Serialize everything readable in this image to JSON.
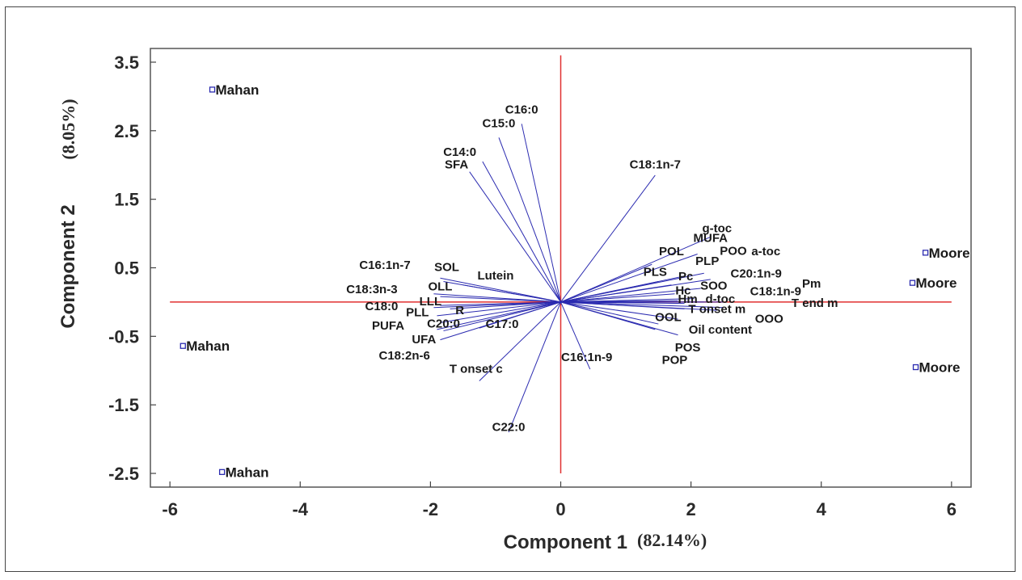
{
  "chart_data": {
    "type": "scatter",
    "subtype": "biplot",
    "title": "",
    "xlabel": "Component 1",
    "xlabel_pct": "(82.14%)",
    "ylabel": "Component 2",
    "ylabel_pct": "(8.05%)",
    "xlim": [
      -6.3,
      6.3
    ],
    "ylim": [
      -2.7,
      3.7
    ],
    "xticks": [
      -6,
      -4,
      -2,
      0,
      2,
      4,
      6
    ],
    "yticks": [
      3.5,
      2.5,
      1.5,
      0.5,
      -0.5,
      -1.5,
      -2.5
    ],
    "colors": {
      "vectors": "#2b2bb0",
      "reference_lines": "#e03030",
      "points": "#2b2bb0",
      "text": "#1a1a1a"
    },
    "points": [
      {
        "label": "Mahan",
        "x": -5.35,
        "y": 3.1
      },
      {
        "label": "Mahan",
        "x": -5.8,
        "y": -0.64
      },
      {
        "label": "Mahan",
        "x": -5.2,
        "y": -2.48
      },
      {
        "label": "Moore",
        "x": 5.6,
        "y": 0.72
      },
      {
        "label": "Moore",
        "x": 5.4,
        "y": 0.28
      },
      {
        "label": "Moore",
        "x": 5.45,
        "y": -0.95
      }
    ],
    "vectors": [
      {
        "label": "C16:0",
        "x": -0.6,
        "y": 2.6
      },
      {
        "label": "C15:0",
        "x": -0.95,
        "y": 2.4
      },
      {
        "label": "C14:0",
        "x": -1.2,
        "y": 2.05
      },
      {
        "label": "SFA",
        "x": -1.4,
        "y": 1.9
      },
      {
        "label": "C18:1n-7",
        "x": 1.45,
        "y": 1.85
      },
      {
        "label": "MUFA",
        "x": 2.3,
        "y": 0.95
      },
      {
        "label": "g-toc",
        "x": 2.1,
        "y": 0.7
      },
      {
        "label": "POL",
        "x": 1.4,
        "y": 0.55
      },
      {
        "label": "POO",
        "x": 2.2,
        "y": 0.42
      },
      {
        "label": "a-toc",
        "x": 2.3,
        "y": 0.33
      },
      {
        "label": "PLP",
        "x": 1.9,
        "y": 0.38
      },
      {
        "label": "C20:1n-9",
        "x": 2.15,
        "y": 0.2
      },
      {
        "label": "PLS",
        "x": 1.5,
        "y": 0.3
      },
      {
        "label": "Pc",
        "x": 1.7,
        "y": 0.25
      },
      {
        "label": "SOO",
        "x": 2.05,
        "y": 0.05
      },
      {
        "label": "Hc",
        "x": 1.75,
        "y": 0.12
      },
      {
        "label": "C18:1n-9",
        "x": 2.5,
        "y": 0.0
      },
      {
        "label": "Pm",
        "x": 2.2,
        "y": 0.0
      },
      {
        "label": "Hm",
        "x": 1.8,
        "y": 0.02
      },
      {
        "label": "d-toc",
        "x": 1.9,
        "y": -0.02
      },
      {
        "label": "T end m",
        "x": 2.5,
        "y": -0.08
      },
      {
        "label": "T onset m",
        "x": 1.9,
        "y": -0.1
      },
      {
        "label": "OOO",
        "x": 2.4,
        "y": -0.12
      },
      {
        "label": "OOL",
        "x": 1.8,
        "y": -0.25
      },
      {
        "label": "Oil content",
        "x": 1.8,
        "y": -0.48
      },
      {
        "label": "POS",
        "x": 1.5,
        "y": -0.32
      },
      {
        "label": "POP",
        "x": 1.45,
        "y": -0.4
      },
      {
        "label": "C16:1n-9",
        "x": 0.45,
        "y": -0.98
      },
      {
        "label": "C22:0",
        "x": -0.8,
        "y": -1.9
      },
      {
        "label": "T onset c",
        "x": -1.25,
        "y": -1.15
      },
      {
        "label": "C17:0",
        "x": -1.25,
        "y": -0.38
      },
      {
        "label": "C20:0",
        "x": -1.85,
        "y": -0.3
      },
      {
        "label": "R",
        "x": -1.7,
        "y": -0.1
      },
      {
        "label": "UFA",
        "x": -1.8,
        "y": -0.42
      },
      {
        "label": "PUFA",
        "x": -1.9,
        "y": -0.4
      },
      {
        "label": "C18:2n-6",
        "x": -1.85,
        "y": -0.55
      },
      {
        "label": "PLL",
        "x": -1.9,
        "y": -0.2
      },
      {
        "label": "C18:0",
        "x": -1.95,
        "y": -0.08
      },
      {
        "label": "LLL",
        "x": -1.85,
        "y": -0.05
      },
      {
        "label": "OLL",
        "x": -1.85,
        "y": 0.08
      },
      {
        "label": "C18:3n-3",
        "x": -1.95,
        "y": 0.12
      },
      {
        "label": "C16:1n-7",
        "x": -1.85,
        "y": 0.35
      },
      {
        "label": "SOL",
        "x": -1.8,
        "y": 0.3
      },
      {
        "label": "Lutein",
        "x": -1.5,
        "y": 0.25
      }
    ],
    "vector_labels": [
      {
        "text": "C16:0",
        "x": -0.6,
        "y": 2.75
      },
      {
        "text": "C15:0",
        "x": -0.95,
        "y": 2.55
      },
      {
        "text": "C14:0",
        "x": -1.55,
        "y": 2.13
      },
      {
        "text": "SFA",
        "x": -1.6,
        "y": 1.95
      },
      {
        "text": "C18:1n-7",
        "x": 1.45,
        "y": 1.95
      },
      {
        "text": "MUFA",
        "x": 2.3,
        "y": 0.88
      },
      {
        "text": "g-toc",
        "x": 2.4,
        "y": 1.02
      },
      {
        "text": "POL",
        "x": 1.7,
        "y": 0.68
      },
      {
        "text": "POO",
        "x": 2.65,
        "y": 0.69
      },
      {
        "text": "a-toc",
        "x": 3.15,
        "y": 0.68
      },
      {
        "text": "PLP",
        "x": 2.25,
        "y": 0.54
      },
      {
        "text": "C20:1n-9",
        "x": 3.0,
        "y": 0.36
      },
      {
        "text": "PLS",
        "x": 1.45,
        "y": 0.38
      },
      {
        "text": "Pc",
        "x": 1.92,
        "y": 0.32
      },
      {
        "text": "SOO",
        "x": 2.35,
        "y": 0.18
      },
      {
        "text": "Hc",
        "x": 1.88,
        "y": 0.11
      },
      {
        "text": "C18:1n-9",
        "x": 3.3,
        "y": 0.1
      },
      {
        "text": "Pm",
        "x": 3.85,
        "y": 0.21
      },
      {
        "text": "Hm",
        "x": 1.95,
        "y": -0.01
      },
      {
        "text": "d-toc",
        "x": 2.45,
        "y": -0.01
      },
      {
        "text": "T end m",
        "x": 3.9,
        "y": -0.07
      },
      {
        "text": "T onset m",
        "x": 2.4,
        "y": -0.16
      },
      {
        "text": "OOO",
        "x": 3.2,
        "y": -0.3
      },
      {
        "text": "OOL",
        "x": 1.65,
        "y": -0.28
      },
      {
        "text": "Oil content",
        "x": 2.45,
        "y": -0.46
      },
      {
        "text": "POS",
        "x": 1.95,
        "y": -0.72
      },
      {
        "text": "POP",
        "x": 1.75,
        "y": -0.9
      },
      {
        "text": "C16:1n-9",
        "x": 0.4,
        "y": -0.86
      },
      {
        "text": "C22:0",
        "x": -0.8,
        "y": -1.88
      },
      {
        "text": "T onset c",
        "x": -1.3,
        "y": -1.03
      },
      {
        "text": "C17:0",
        "x": -0.9,
        "y": -0.38
      },
      {
        "text": "C20:0",
        "x": -1.8,
        "y": -0.37
      },
      {
        "text": "R",
        "x": -1.55,
        "y": -0.18
      },
      {
        "text": "UFA",
        "x": -2.1,
        "y": -0.6
      },
      {
        "text": "PUFA",
        "x": -2.65,
        "y": -0.4
      },
      {
        "text": "C18:2n-6",
        "x": -2.4,
        "y": -0.84
      },
      {
        "text": "PLL",
        "x": -2.2,
        "y": -0.21
      },
      {
        "text": "C18:0",
        "x": -2.75,
        "y": -0.12
      },
      {
        "text": "LLL",
        "x": -2.0,
        "y": -0.05
      },
      {
        "text": "OLL",
        "x": -1.85,
        "y": 0.17
      },
      {
        "text": "C18:3n-3",
        "x": -2.9,
        "y": 0.13
      },
      {
        "text": "C16:1n-7",
        "x": -2.7,
        "y": 0.48
      },
      {
        "text": "SOL",
        "x": -1.75,
        "y": 0.45
      },
      {
        "text": "Lutein",
        "x": -1.0,
        "y": 0.33
      }
    ]
  }
}
